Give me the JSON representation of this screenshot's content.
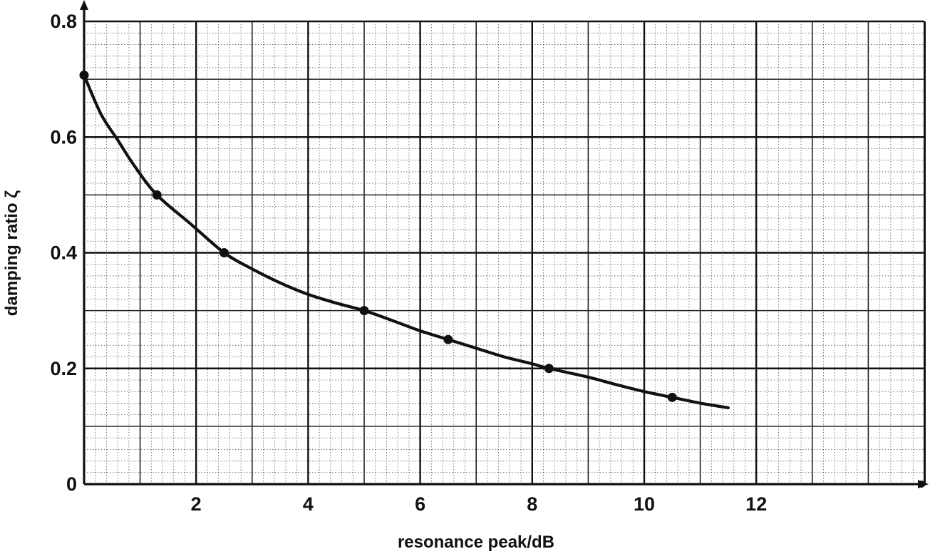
{
  "chart_data": {
    "type": "line",
    "title": "",
    "xlabel": "resonance peak/dB",
    "ylabel": "damping ratio ζ",
    "xlim": [
      0,
      15
    ],
    "ylim": [
      0,
      0.8
    ],
    "x_ticks": [
      2,
      4,
      6,
      8,
      10,
      12
    ],
    "x_tick_labels": [
      "2",
      "4",
      "6",
      "8",
      "10",
      "12"
    ],
    "y_ticks": [
      0,
      0.2,
      0.4,
      0.6,
      0.8
    ],
    "y_tick_labels": [
      "0",
      "0.2",
      "0.4",
      "0.6",
      "0.8"
    ],
    "grid": true,
    "legend": "none",
    "series": [
      {
        "curve": [
          [
            0,
            0.707
          ],
          [
            0.3,
            0.64
          ],
          [
            0.6,
            0.595
          ],
          [
            0.9,
            0.55
          ],
          [
            1.3,
            0.5
          ],
          [
            1.9,
            0.45
          ],
          [
            2.5,
            0.4
          ],
          [
            3.0,
            0.372
          ],
          [
            3.5,
            0.348
          ],
          [
            4.0,
            0.328
          ],
          [
            4.5,
            0.313
          ],
          [
            5.0,
            0.3
          ],
          [
            5.5,
            0.283
          ],
          [
            6.0,
            0.265
          ],
          [
            6.5,
            0.25
          ],
          [
            7.0,
            0.235
          ],
          [
            7.5,
            0.22
          ],
          [
            8.0,
            0.208
          ],
          [
            8.3,
            0.2
          ],
          [
            9.0,
            0.185
          ],
          [
            9.5,
            0.172
          ],
          [
            10.0,
            0.16
          ],
          [
            10.5,
            0.15
          ],
          [
            11.0,
            0.14
          ],
          [
            11.5,
            0.132
          ]
        ],
        "markers": [
          [
            0,
            0.707
          ],
          [
            1.3,
            0.5
          ],
          [
            2.5,
            0.4
          ],
          [
            5.0,
            0.3
          ],
          [
            6.5,
            0.25
          ],
          [
            8.3,
            0.2
          ],
          [
            10.5,
            0.15
          ]
        ]
      }
    ],
    "colors": {
      "ink": "#111111",
      "grid": "#222222",
      "background": "#ffffff"
    }
  }
}
